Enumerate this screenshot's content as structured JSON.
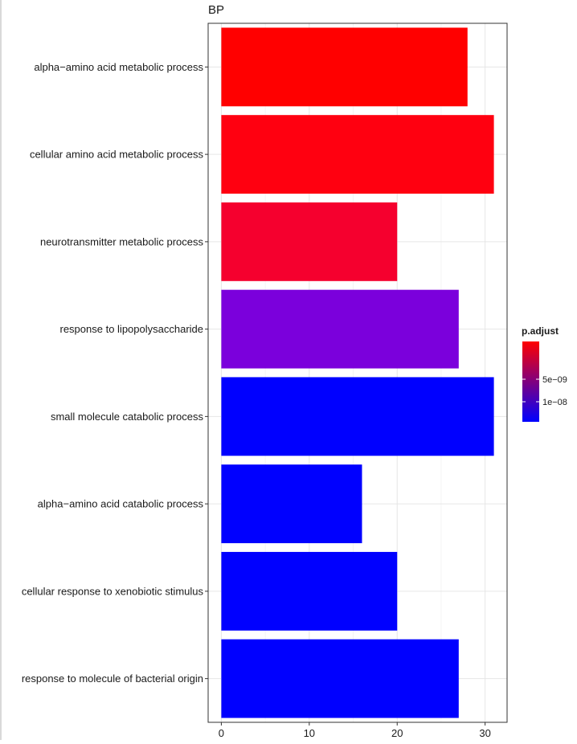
{
  "chart_data": {
    "type": "bar",
    "orientation": "horizontal",
    "title": "BP",
    "xlabel": "",
    "ylabel": "",
    "categories": [
      "alpha−amino acid metabolic process",
      "cellular amino acid metabolic process",
      "neurotransmitter metabolic process",
      "response to lipopolysaccharide",
      "small molecule catabolic process",
      "alpha−amino acid catabolic process",
      "cellular response to xenobiotic stimulus",
      "response to molecule of bacterial origin"
    ],
    "values": [
      28,
      31,
      20,
      27,
      31,
      16,
      20,
      27
    ],
    "bar_colors": [
      "#ff0000",
      "#ff0010",
      "#f5002e",
      "#7b00dc",
      "#0000ff",
      "#0000ff",
      "#0000ff",
      "#0000ff"
    ],
    "xlim": [
      -1.5,
      32.5
    ],
    "xticks": [
      0,
      10,
      20,
      30
    ],
    "grid": true,
    "legend": {
      "title": "p.adjust",
      "placement": "right",
      "type": "gradient",
      "color_high": "#ff0000",
      "color_low": "#0000ff",
      "ticks": [
        {
          "label": "5e−09",
          "fraction": 0.47
        },
        {
          "label": "1e−08",
          "fraction": 0.75
        }
      ]
    }
  }
}
